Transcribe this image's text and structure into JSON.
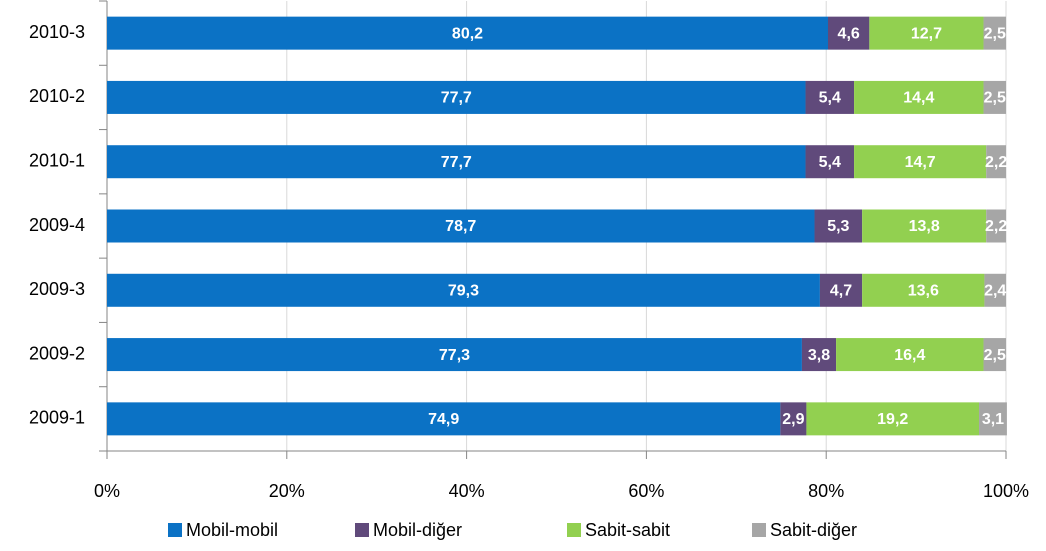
{
  "chart_data": {
    "type": "stacked_barh",
    "categories": [
      "2010-3",
      "2010-2",
      "2010-1",
      "2009-4",
      "2009-3",
      "2009-2",
      "2009-1"
    ],
    "series": [
      {
        "name": "Mobil-mobil",
        "color": "#0b72c5",
        "values": [
          80.2,
          77.7,
          77.7,
          78.7,
          79.3,
          77.3,
          74.9
        ],
        "value_labels": [
          "80,2",
          "77,7",
          "77,7",
          "78,7",
          "79,3",
          "77,3",
          "74,9"
        ]
      },
      {
        "name": "Mobil-diğer",
        "color": "#604a7b",
        "values": [
          4.6,
          5.4,
          5.4,
          5.3,
          4.7,
          3.8,
          2.9
        ],
        "value_labels": [
          "4,6",
          "5,4",
          "5,4",
          "5,3",
          "4,7",
          "3,8",
          "2,9"
        ]
      },
      {
        "name": "Sabit-sabit",
        "color": "#92d050",
        "values": [
          12.7,
          14.4,
          14.7,
          13.8,
          13.6,
          16.4,
          19.2
        ],
        "value_labels": [
          "12,7",
          "14,4",
          "14,7",
          "13,8",
          "13,6",
          "16,4",
          "19,2"
        ]
      },
      {
        "name": "Sabit-diğer",
        "color": "#a6a6a6",
        "values": [
          2.5,
          2.5,
          2.2,
          2.2,
          2.4,
          2.5,
          3.1
        ],
        "value_labels": [
          "2,5",
          "2,5",
          "2,2",
          "2,2",
          "2,4",
          "2,5",
          "3,1"
        ]
      }
    ],
    "xlim": [
      0,
      100
    ],
    "xticks": [
      {
        "value": 0,
        "label": "0%"
      },
      {
        "value": 20,
        "label": "20%"
      },
      {
        "value": 40,
        "label": "40%"
      },
      {
        "value": 60,
        "label": "60%"
      },
      {
        "value": 80,
        "label": "80%"
      },
      {
        "value": 100,
        "label": "100%"
      }
    ],
    "grid": true,
    "legend": "bottom"
  }
}
